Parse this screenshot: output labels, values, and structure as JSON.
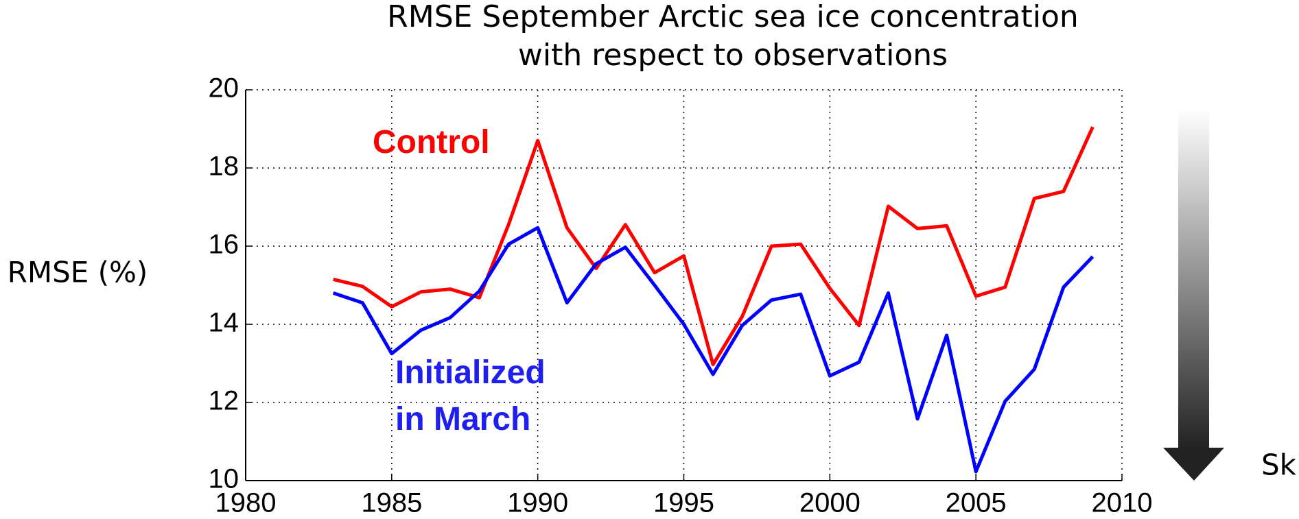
{
  "chart_data": {
    "type": "line",
    "title": "RMSE September Arctic sea ice concentration",
    "subtitle": "with respect to observations",
    "ylabel": "RMSE (%)",
    "annotation": "Skill",
    "x": [
      1983,
      1984,
      1985,
      1986,
      1987,
      1988,
      1989,
      1990,
      1991,
      1992,
      1993,
      1994,
      1995,
      1996,
      1997,
      1998,
      1999,
      2000,
      2001,
      2002,
      2003,
      2004,
      2005,
      2006,
      2007,
      2008,
      2009
    ],
    "series": [
      {
        "name": "Control",
        "color": "#ff0000",
        "values": [
          15.15,
          14.97,
          14.45,
          14.83,
          14.9,
          14.68,
          16.55,
          18.7,
          16.47,
          15.43,
          16.55,
          15.32,
          15.75,
          12.97,
          14.2,
          16.0,
          16.05,
          14.92,
          13.97,
          17.02,
          16.45,
          16.52,
          14.72,
          14.95,
          17.22,
          17.4,
          19.05
        ]
      },
      {
        "name": "Initialized in March",
        "color": "#0000ff",
        "values": [
          14.8,
          14.55,
          13.25,
          13.85,
          14.17,
          14.85,
          16.05,
          16.47,
          14.55,
          15.55,
          15.97,
          15.0,
          14.0,
          12.72,
          13.97,
          14.62,
          14.77,
          12.68,
          13.03,
          14.8,
          11.58,
          13.72,
          10.23,
          12.03,
          12.85,
          14.95,
          15.73
        ]
      }
    ],
    "xlim": [
      1980,
      2010
    ],
    "xticks": [
      1980,
      1985,
      1990,
      1995,
      2000,
      2005,
      2010
    ],
    "ylim": [
      10,
      20
    ],
    "yticks": [
      10,
      12,
      14,
      16,
      18,
      20
    ],
    "grid": true
  }
}
